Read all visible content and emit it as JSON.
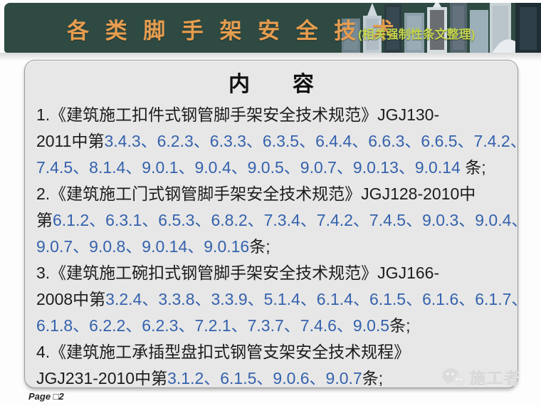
{
  "header": {
    "title": "各 类 脚 手 架 安 全 技 术",
    "subtitle": "(相关强制性条文整理)",
    "bg_color": "#2e4a43",
    "title_color": "#e79d4f",
    "subtitle_color": "#c3d54d"
  },
  "content": {
    "heading": "内　　容",
    "text_color": "#1c1c1c",
    "number_color": "#3562ad",
    "lines": [
      {
        "segments": [
          {
            "t": "1.《建筑施工扣件式钢管脚手架安全技术规范》JGJ130-",
            "c": "t"
          }
        ]
      },
      {
        "segments": [
          {
            "t": "2011中第",
            "c": "t"
          },
          {
            "t": "3.4.3、6.2.3、6.3.3、6.3.5、6.4.4、6.6.3、6.6.5、7.4.2、",
            "c": "n"
          }
        ]
      },
      {
        "segments": [
          {
            "t": "7.4.5、8.1.4、9.0.1、9.0.4、9.0.5、9.0.7、9.0.13、9.0.14",
            "c": "n"
          },
          {
            "t": " 条;",
            "c": "t"
          }
        ]
      },
      {
        "segments": [
          {
            "t": "2.《建筑施工门式钢管脚手架安全技术规范》JGJ128-2010中",
            "c": "t"
          }
        ]
      },
      {
        "segments": [
          {
            "t": "第",
            "c": "t"
          },
          {
            "t": "6.1.2、6.3.1、6.5.3、6.8.2、7.3.4、7.4.2、7.4.5、9.0.3、9.0.4、",
            "c": "n"
          }
        ]
      },
      {
        "segments": [
          {
            "t": "9.0.7、9.0.8、9.0.14、9.0.16",
            "c": "n"
          },
          {
            "t": "条;",
            "c": "t"
          }
        ]
      },
      {
        "segments": [
          {
            "t": "3.《建筑施工碗扣式钢管脚手架安全技术规范》JGJ166-",
            "c": "t"
          }
        ]
      },
      {
        "segments": [
          {
            "t": "2008中第",
            "c": "t"
          },
          {
            "t": "3.2.4、3.3.8、3.3.9、5.1.4、6.1.4、6.1.5、6.1.6、6.1.7、",
            "c": "n"
          }
        ]
      },
      {
        "segments": [
          {
            "t": "6.1.8、6.2.2、6.2.3、7.2.1、7.3.7、7.4.6、9.0.5",
            "c": "n"
          },
          {
            "t": "条;",
            "c": "t"
          }
        ]
      },
      {
        "segments": [
          {
            "t": "4.《建筑施工承插型盘扣式钢管支架安全技术规程》",
            "c": "t"
          }
        ]
      },
      {
        "segments": [
          {
            "t": "JGJ231-2010中第",
            "c": "t"
          },
          {
            "t": "3.1.2、6.1.5、9.0.6、9.0.7",
            "c": "n"
          },
          {
            "t": "条;",
            "c": "t"
          }
        ]
      }
    ]
  },
  "footer": {
    "page_label": "Page □2",
    "watermark_text": "施工者"
  }
}
